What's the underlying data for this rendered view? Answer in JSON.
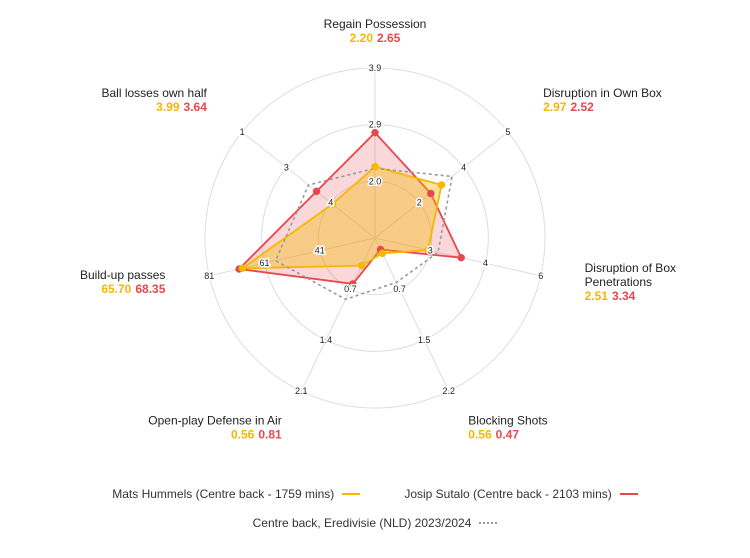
{
  "chart_data": {
    "type": "radar",
    "axes": [
      {
        "label": [
          "Regain Possession"
        ],
        "values": [
          "2.20",
          "2.65"
        ],
        "ticks": [
          "2.0",
          "2.9",
          "3.9"
        ]
      },
      {
        "label": [
          "Disruption in Own Box"
        ],
        "values": [
          "2.97",
          "2.52"
        ],
        "ticks": [
          "2",
          "4",
          "5"
        ]
      },
      {
        "label": [
          "Disruption of Box",
          "Penetrations"
        ],
        "values": [
          "2.51",
          "3.34"
        ],
        "ticks": [
          "3",
          "4",
          "6"
        ]
      },
      {
        "label": [
          "Blocking Shots"
        ],
        "values": [
          "0.56",
          "0.47"
        ],
        "ticks": [
          "0.7",
          "1.5",
          "2.2"
        ]
      },
      {
        "label": [
          "Open-play Defense in Air"
        ],
        "values": [
          "0.56",
          "0.81"
        ],
        "ticks": [
          "0.7",
          "1.4",
          "2.1"
        ]
      },
      {
        "label": [
          "Build-up passes"
        ],
        "values": [
          "65.70",
          "68.35"
        ],
        "ticks": [
          "41",
          "61",
          "81"
        ]
      },
      {
        "label": [
          "Ball losses own half"
        ],
        "values": [
          "3.99",
          "3.64"
        ],
        "ticks": [
          "4",
          "3",
          "1"
        ]
      }
    ],
    "scale_min": 0,
    "scale_max": 1,
    "series": [
      {
        "name": "Mats Hummels (Centre back - 1759 mins)",
        "color": "#f5b800",
        "style": "solid",
        "values": [
          0.42,
          0.5,
          0.32,
          0.1,
          0.18,
          0.8,
          0.32
        ]
      },
      {
        "name": "Josip Sutalo (Centre back - 2103 mins)",
        "color": "#e8474c",
        "style": "solid",
        "values": [
          0.62,
          0.42,
          0.52,
          0.075,
          0.3,
          0.82,
          0.44
        ]
      },
      {
        "name": "Centre back, Eredivisie (NLD) 2023/2024",
        "color": "#999999",
        "style": "dotted",
        "values": [
          0.41,
          0.58,
          0.38,
          0.29,
          0.4,
          0.6,
          0.5
        ]
      }
    ],
    "grid": true,
    "legend_position": "bottom"
  }
}
